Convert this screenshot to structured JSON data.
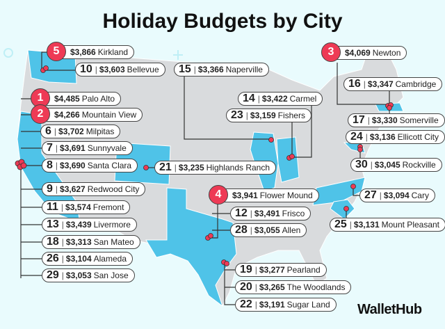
{
  "title": "Holiday Budgets by City",
  "logo": "WalletHub",
  "colors": {
    "highlight": "#4fc3e8",
    "land": "#d9dbdd",
    "dot": "#ee3a55"
  },
  "cities": [
    {
      "rank": "1",
      "amount": "$4,485",
      "name": "Palo Alto"
    },
    {
      "rank": "2",
      "amount": "$4,266",
      "name": "Mountain View"
    },
    {
      "rank": "3",
      "amount": "$4,069",
      "name": "Newton"
    },
    {
      "rank": "4",
      "amount": "$3,941",
      "name": "Flower Mound"
    },
    {
      "rank": "5",
      "amount": "$3,866",
      "name": "Kirkland"
    },
    {
      "rank": "6",
      "amount": "$3,702",
      "name": "Milpitas"
    },
    {
      "rank": "7",
      "amount": "$3,691",
      "name": "Sunnyvale"
    },
    {
      "rank": "8",
      "amount": "$3,690",
      "name": "Santa Clara"
    },
    {
      "rank": "9",
      "amount": "$3,627",
      "name": "Redwood City"
    },
    {
      "rank": "10",
      "amount": "$3,603",
      "name": "Bellevue"
    },
    {
      "rank": "11",
      "amount": "$3,574",
      "name": "Fremont"
    },
    {
      "rank": "12",
      "amount": "$3,491",
      "name": "Frisco"
    },
    {
      "rank": "13",
      "amount": "$3,439",
      "name": "Livermore"
    },
    {
      "rank": "14",
      "amount": "$3,422",
      "name": "Carmel"
    },
    {
      "rank": "15",
      "amount": "$3,366",
      "name": "Naperville"
    },
    {
      "rank": "16",
      "amount": "$3,347",
      "name": "Cambridge"
    },
    {
      "rank": "17",
      "amount": "$3,330",
      "name": "Somerville"
    },
    {
      "rank": "18",
      "amount": "$3,313",
      "name": "San Mateo"
    },
    {
      "rank": "19",
      "amount": "$3,277",
      "name": "Pearland"
    },
    {
      "rank": "20",
      "amount": "$3,265",
      "name": "The Woodlands"
    },
    {
      "rank": "21",
      "amount": "$3,235",
      "name": "Highlands Ranch"
    },
    {
      "rank": "22",
      "amount": "$3,191",
      "name": "Sugar Land"
    },
    {
      "rank": "23",
      "amount": "$3,159",
      "name": "Fishers"
    },
    {
      "rank": "24",
      "amount": "$3,136",
      "name": "Ellicott City"
    },
    {
      "rank": "25",
      "amount": "$3,131",
      "name": "Mount Pleasant"
    },
    {
      "rank": "26",
      "amount": "$3,104",
      "name": "Alameda"
    },
    {
      "rank": "27",
      "amount": "$3,094",
      "name": "Cary"
    },
    {
      "rank": "28",
      "amount": "$3,055",
      "name": "Allen"
    },
    {
      "rank": "29",
      "amount": "$3,053",
      "name": "San Jose"
    },
    {
      "rank": "30",
      "amount": "$3,045",
      "name": "Rockville"
    }
  ]
}
